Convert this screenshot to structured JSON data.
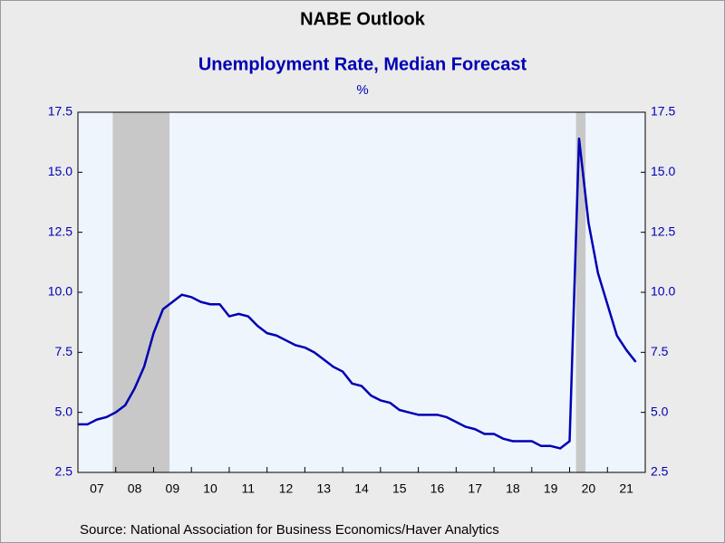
{
  "chart_data": {
    "type": "line",
    "title": "NABE Outlook",
    "subtitle": "Unemployment Rate, Median Forecast",
    "y_label": "%",
    "source": "Source:  National Association for Business Economics/Haver Analytics",
    "color": "#0000b4",
    "x": [
      2007,
      2007.25,
      2007.5,
      2007.75,
      2008,
      2008.25,
      2008.5,
      2008.75,
      2009,
      2009.25,
      2009.5,
      2009.75,
      2010,
      2010.25,
      2010.5,
      2010.75,
      2011,
      2011.25,
      2011.5,
      2011.75,
      2012,
      2012.25,
      2012.5,
      2012.75,
      2013,
      2013.25,
      2013.5,
      2013.75,
      2014,
      2014.25,
      2014.5,
      2014.75,
      2015,
      2015.25,
      2015.5,
      2015.75,
      2016,
      2016.25,
      2016.5,
      2016.75,
      2017,
      2017.25,
      2017.5,
      2017.75,
      2018,
      2018.25,
      2018.5,
      2018.75,
      2019,
      2019.25,
      2019.5,
      2019.75,
      2020,
      2020.25,
      2020.5,
      2020.75,
      2021,
      2021.25,
      2021.5,
      2021.75
    ],
    "values": [
      4.5,
      4.5,
      4.7,
      4.8,
      5.0,
      5.3,
      6.0,
      6.9,
      8.3,
      9.3,
      9.6,
      9.9,
      9.8,
      9.6,
      9.5,
      9.5,
      9.0,
      9.1,
      9.0,
      8.6,
      8.3,
      8.2,
      8.0,
      7.8,
      7.7,
      7.5,
      7.2,
      6.9,
      6.7,
      6.2,
      6.1,
      5.7,
      5.5,
      5.4,
      5.1,
      5.0,
      4.9,
      4.9,
      4.9,
      4.8,
      4.6,
      4.4,
      4.3,
      4.1,
      4.1,
      3.9,
      3.8,
      3.8,
      3.8,
      3.6,
      3.6,
      3.5,
      3.8,
      16.4,
      12.9,
      10.8,
      9.5,
      8.2,
      7.6,
      7.1
    ],
    "shaded_periods": [
      [
        2007.92,
        2009.42
      ],
      [
        2020.17,
        2020.42
      ]
    ],
    "xlim": [
      2007,
      2022
    ],
    "xticks": [
      {
        "value": 2007.5,
        "label": "07"
      },
      {
        "value": 2008.5,
        "label": "08"
      },
      {
        "value": 2009.5,
        "label": "09"
      },
      {
        "value": 2010.5,
        "label": "10"
      },
      {
        "value": 2011.5,
        "label": "11"
      },
      {
        "value": 2012.5,
        "label": "12"
      },
      {
        "value": 2013.5,
        "label": "13"
      },
      {
        "value": 2014.5,
        "label": "14"
      },
      {
        "value": 2015.5,
        "label": "15"
      },
      {
        "value": 2016.5,
        "label": "16"
      },
      {
        "value": 2017.5,
        "label": "17"
      },
      {
        "value": 2018.5,
        "label": "18"
      },
      {
        "value": 2019.5,
        "label": "19"
      },
      {
        "value": 2020.5,
        "label": "20"
      },
      {
        "value": 2021.5,
        "label": "21"
      }
    ],
    "ylim": [
      2.5,
      17.5
    ],
    "yticks": [
      2.5,
      {
        "value": 5,
        "label": "5.0"
      },
      7.5,
      {
        "value": 10,
        "label": "10.0"
      },
      12.5,
      {
        "value": 15,
        "label": "15.0"
      },
      17.5
    ],
    "y2lim": [
      2.5,
      17.5
    ],
    "y2ticks": [
      2.5,
      {
        "value": 5,
        "label": "5.0"
      },
      7.5,
      {
        "value": 10,
        "label": "10.0"
      },
      12.5,
      {
        "value": 15,
        "label": "15.0"
      },
      17.5
    ]
  }
}
